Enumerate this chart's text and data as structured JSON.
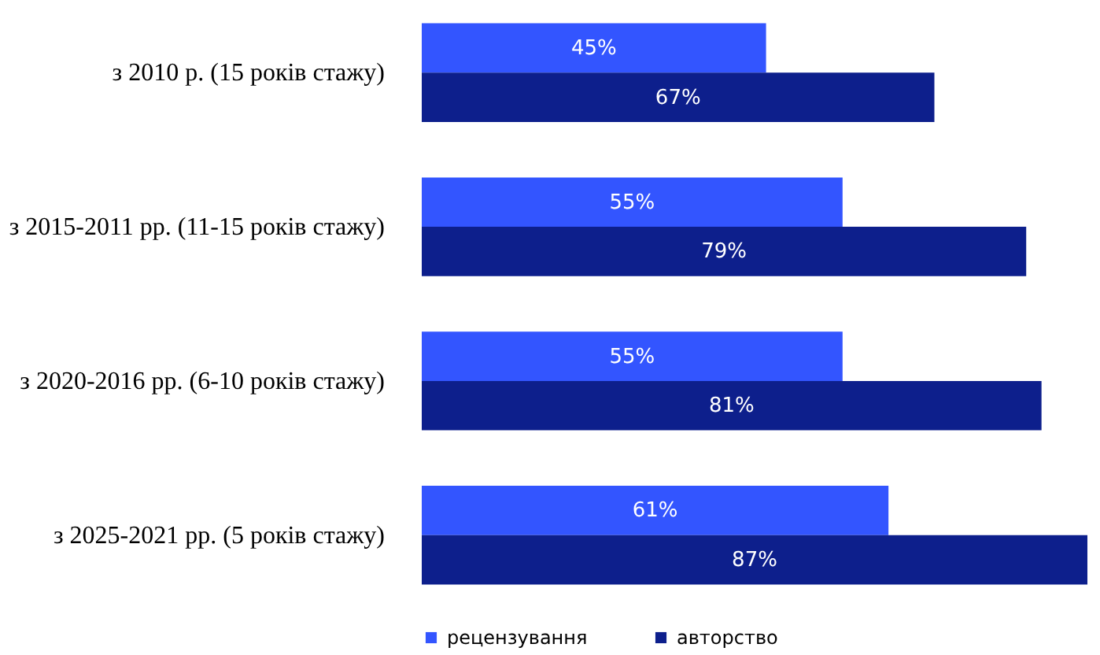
{
  "chart_data": {
    "type": "bar",
    "orientation": "horizontal",
    "categories": [
      "з 2010 р. (15 років стажу)",
      "з 2015-2011 рр. (11-15 років стажу)",
      "з 2020-2016 рр. (6-10 років стажу)",
      "з 2025-2021 рр. (5 років стажу)"
    ],
    "series": [
      {
        "name": "рецензування",
        "color": "#3355ff",
        "values": [
          45,
          55,
          55,
          61
        ],
        "value_labels": [
          "45%",
          "55%",
          "55%",
          "61%"
        ]
      },
      {
        "name": "авторство",
        "color": "#0d1f8c",
        "values": [
          67,
          79,
          81,
          87
        ],
        "value_labels": [
          "67%",
          "79%",
          "81%",
          "87%"
        ]
      }
    ],
    "legend": "bottom"
  }
}
